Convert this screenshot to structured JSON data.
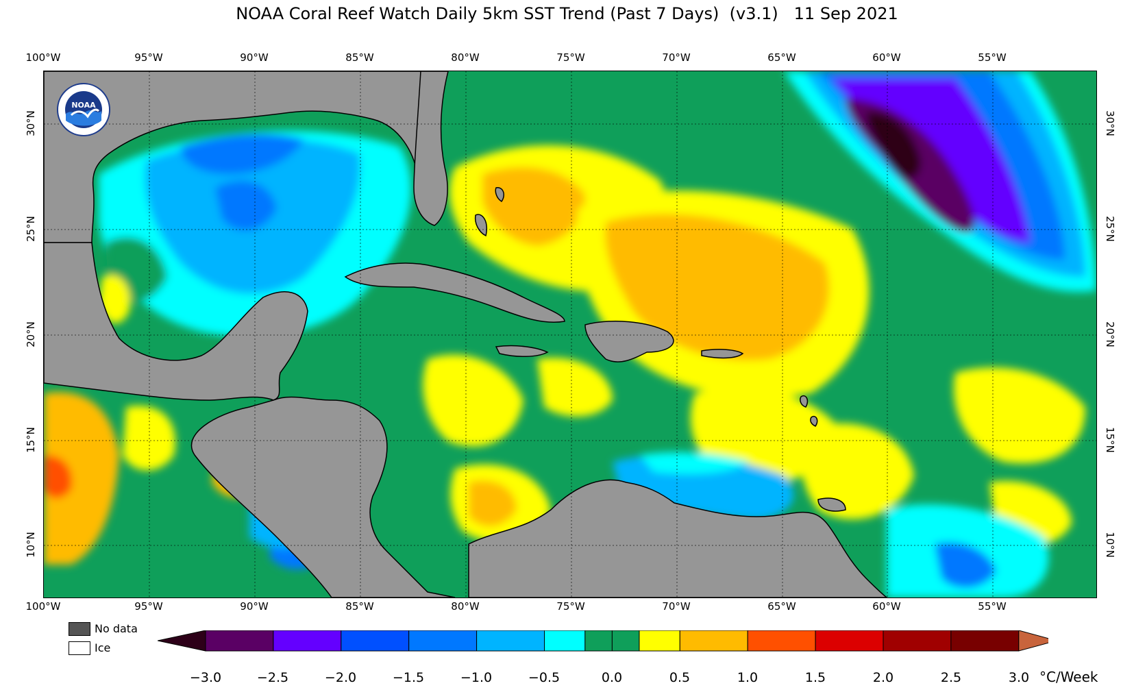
{
  "title": "NOAA Coral Reef Watch Daily 5km SST Trend (Past 7 Days)  (v3.1)   11 Sep 2021",
  "map": {
    "lon_labels": [
      "100°W",
      "95°W",
      "90°W",
      "85°W",
      "80°W",
      "75°W",
      "70°W",
      "65°W",
      "60°W",
      "55°W"
    ],
    "lat_labels": [
      "30°N",
      "25°N",
      "20°N",
      "15°N",
      "10°N"
    ],
    "colors": {
      "land": "#969696",
      "ocean_neutral": "#0f9f5a",
      "cyan": "#00ffff",
      "lightblue": "#00b4ff",
      "blue": "#0078ff",
      "deepblue": "#0050ff",
      "violet": "#6400ff",
      "purple": "#5a0064",
      "darkest": "#2d0018",
      "yellow": "#ffff00",
      "orange": "#ffbb00",
      "redorange": "#ff5000"
    }
  },
  "logo": {
    "text": "NOAA",
    "ring_text": "NATIONAL OCEANIC AND ATMOSPHERIC ADMINISTRATION · U.S. DEPARTMENT OF COMMERCE"
  },
  "legend": {
    "no_data_label": "No data",
    "ice_label": "Ice",
    "no_data_color": "#555555",
    "ice_color": "#ffffff"
  },
  "colorbar": {
    "ticks": [
      "−3.0",
      "−2.5",
      "−2.0",
      "−1.5",
      "−1.0",
      "−0.5",
      "0.0",
      "0.5",
      "1.0",
      "1.5",
      "2.0",
      "2.5",
      "3.0"
    ],
    "units": "°C/Week",
    "colors": [
      "#5a0064",
      "#6400ff",
      "#0050ff",
      "#0078ff",
      "#00b4ff",
      "#00ffff",
      "#0f9f5a",
      "#0f9f5a",
      "#ffff00",
      "#ffbb00",
      "#ff5000",
      "#dc0000",
      "#a00000",
      "#780000",
      "#5a0000"
    ],
    "low_extend_color": "#2d0018",
    "high_extend_color": "#c8643c"
  }
}
